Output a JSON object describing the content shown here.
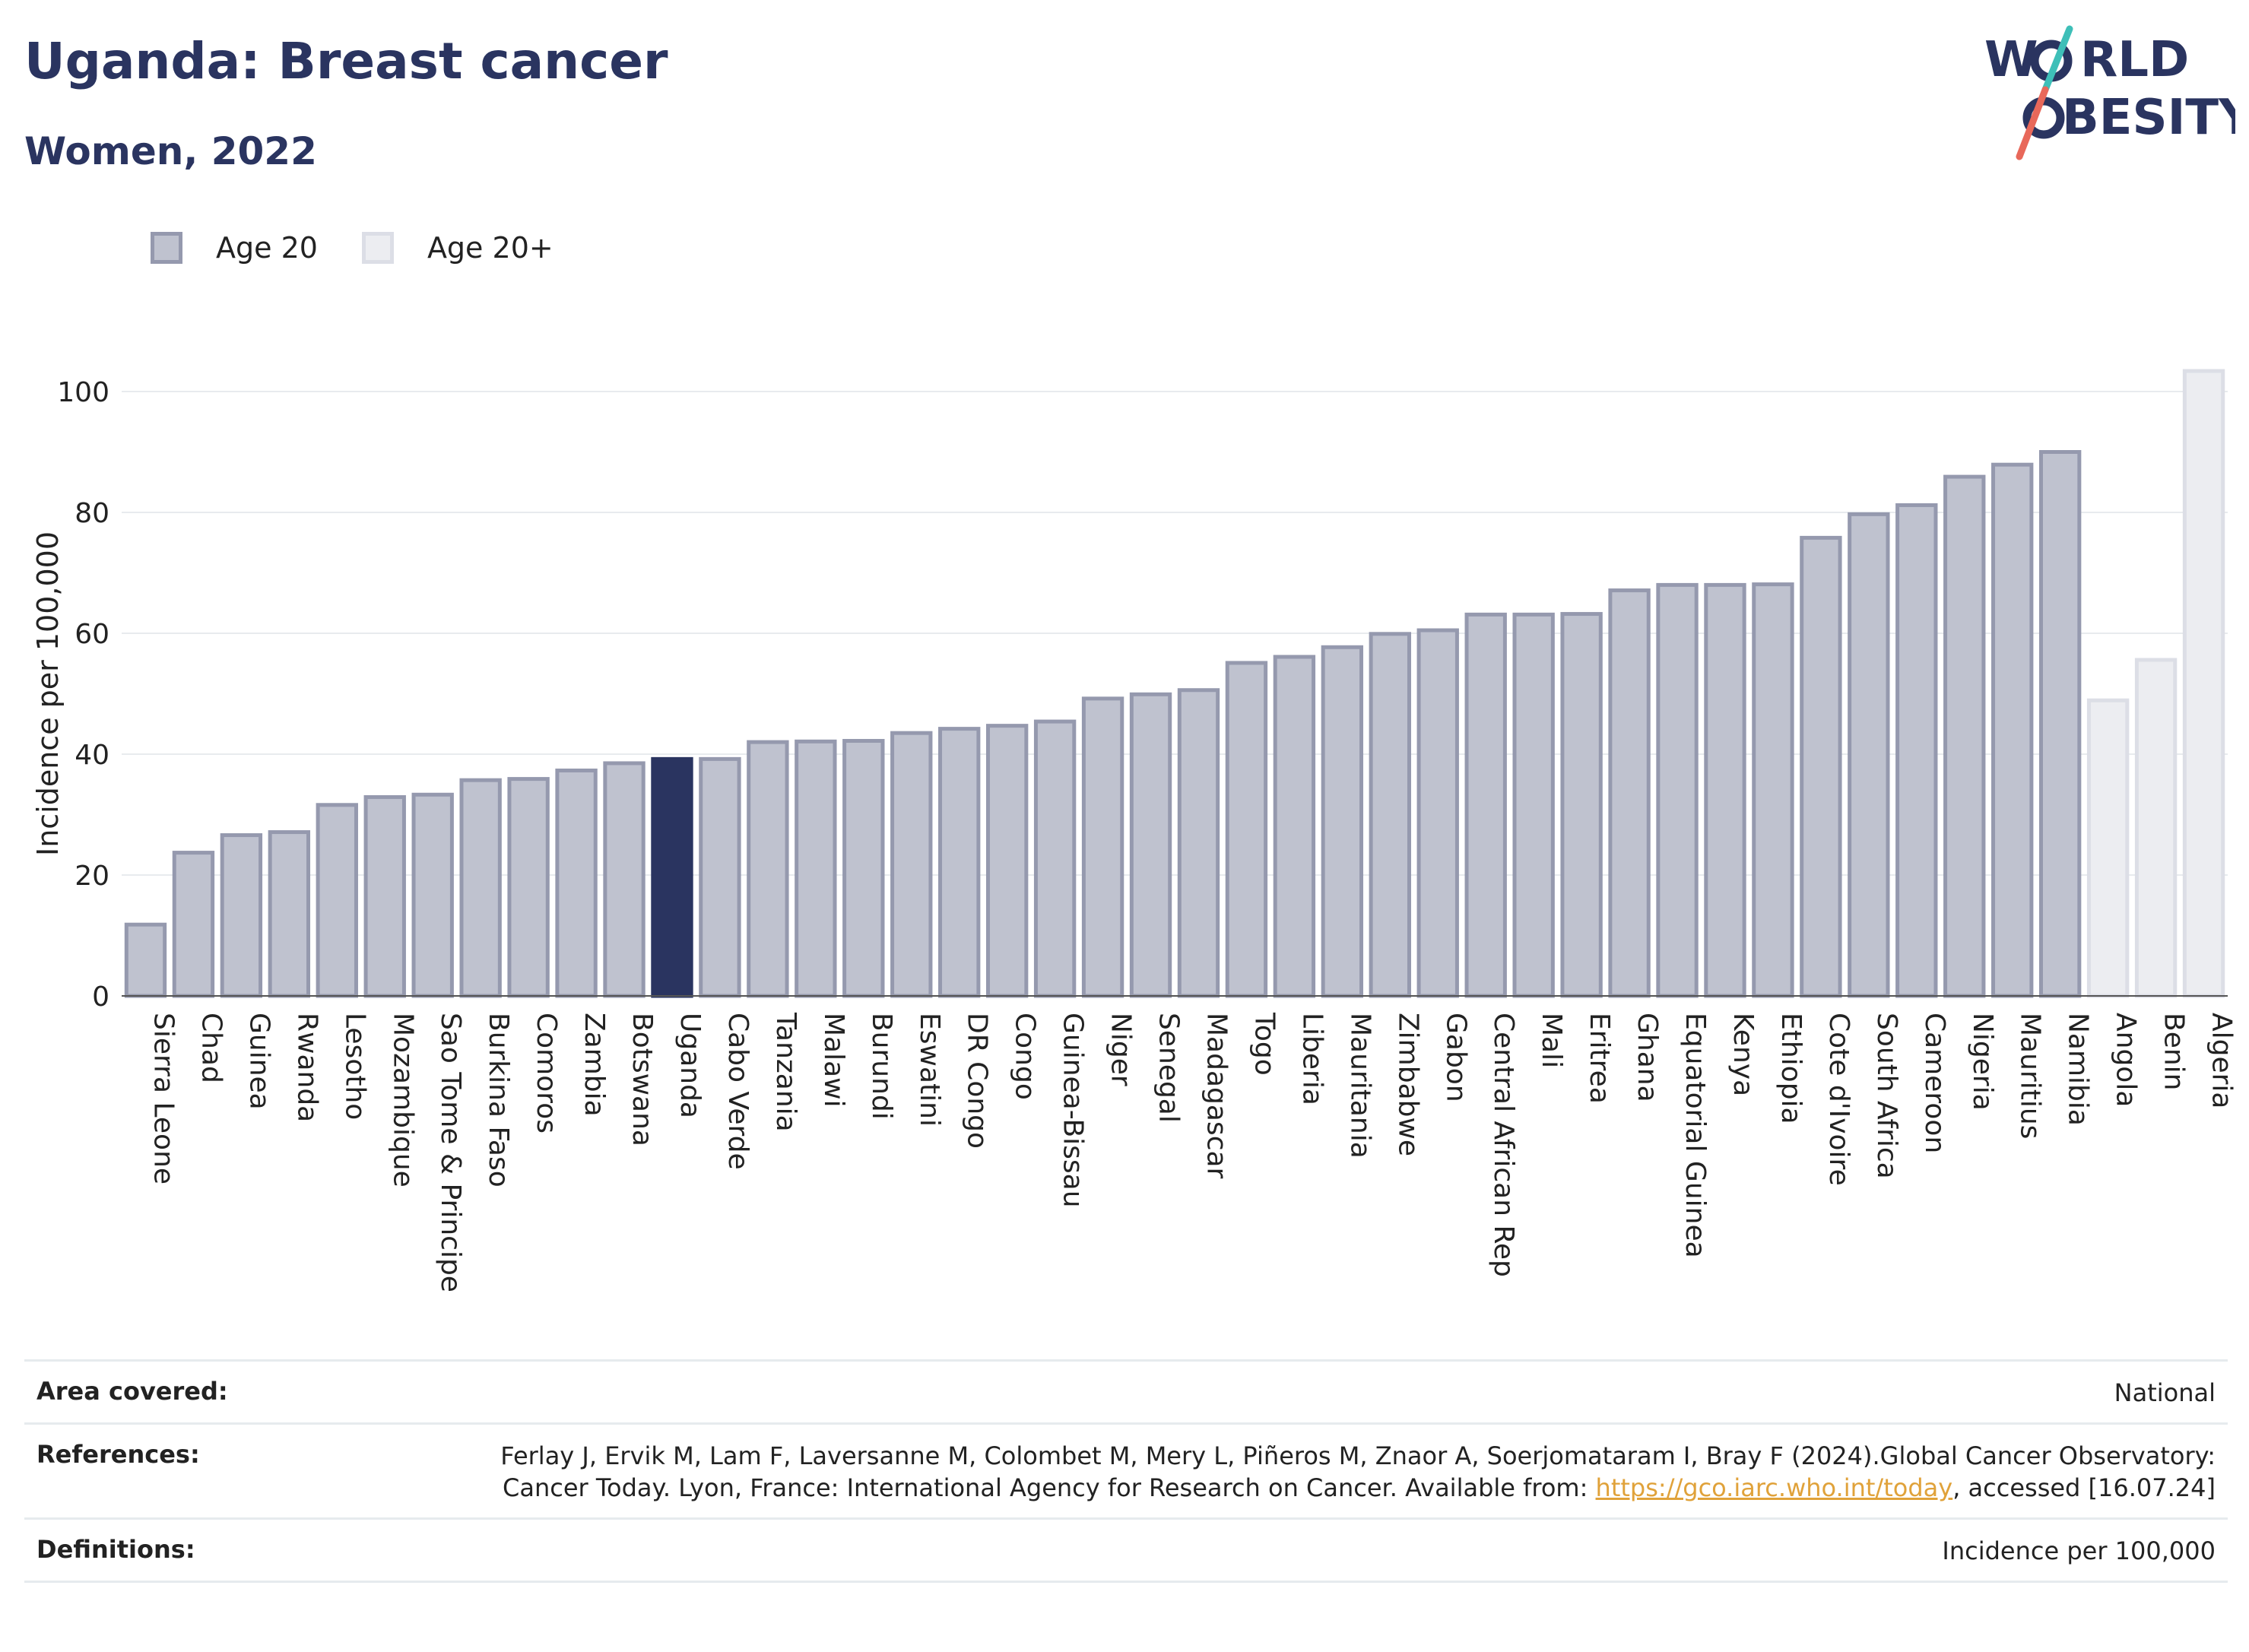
{
  "header": {
    "title": "Uganda: Breast cancer",
    "subtitle": "Women, 2022"
  },
  "logo": {
    "line1": "W",
    "line1_rest": "RLD",
    "line2": "BESITY",
    "slash_colors": [
      "#e8685a",
      "#3ebfb8"
    ]
  },
  "colors": {
    "navy": "#2a3460",
    "bar_age20_fill": "#bfc2cf",
    "bar_age20_stroke": "#9599ae",
    "bar_age20plus_fill": "#ecedf1",
    "bar_age20plus_stroke": "#dcdee6",
    "highlight": "#2a3460"
  },
  "chart_data": {
    "type": "bar",
    "ylabel": "Incidence per 100,000",
    "ylim": [
      0,
      105
    ],
    "yticks": [
      0,
      20,
      40,
      60,
      80,
      100
    ],
    "grid": true,
    "legend": [
      {
        "name": "Age 20",
        "key": "age20"
      },
      {
        "name": "Age 20+",
        "key": "age20plus"
      }
    ],
    "legend_position": "top-left",
    "highlight": "Uganda",
    "bars": [
      {
        "category": "Sierra Leone",
        "value": 11.8,
        "series": "age20"
      },
      {
        "category": "Chad",
        "value": 23.7,
        "series": "age20"
      },
      {
        "category": "Guinea",
        "value": 26.6,
        "series": "age20"
      },
      {
        "category": "Rwanda",
        "value": 27.1,
        "series": "age20"
      },
      {
        "category": "Lesotho",
        "value": 31.6,
        "series": "age20"
      },
      {
        "category": "Mozambique",
        "value": 32.9,
        "series": "age20"
      },
      {
        "category": "Sao Tome & Principe",
        "value": 33.3,
        "series": "age20"
      },
      {
        "category": "Burkina Faso",
        "value": 35.7,
        "series": "age20"
      },
      {
        "category": "Comoros",
        "value": 35.9,
        "series": "age20"
      },
      {
        "category": "Zambia",
        "value": 37.3,
        "series": "age20"
      },
      {
        "category": "Botswana",
        "value": 38.5,
        "series": "age20"
      },
      {
        "category": "Uganda",
        "value": 39.2,
        "series": "age20"
      },
      {
        "category": "Cabo Verde",
        "value": 39.2,
        "series": "age20"
      },
      {
        "category": "Tanzania",
        "value": 42.0,
        "series": "age20"
      },
      {
        "category": "Malawi",
        "value": 42.1,
        "series": "age20"
      },
      {
        "category": "Burundi",
        "value": 42.2,
        "series": "age20"
      },
      {
        "category": "Eswatini",
        "value": 43.5,
        "series": "age20"
      },
      {
        "category": "DR Congo",
        "value": 44.2,
        "series": "age20"
      },
      {
        "category": "Congo",
        "value": 44.7,
        "series": "age20"
      },
      {
        "category": "Guinea-Bissau",
        "value": 45.4,
        "series": "age20"
      },
      {
        "category": "Niger",
        "value": 49.2,
        "series": "age20"
      },
      {
        "category": "Senegal",
        "value": 49.9,
        "series": "age20"
      },
      {
        "category": "Madagascar",
        "value": 50.6,
        "series": "age20"
      },
      {
        "category": "Togo",
        "value": 55.1,
        "series": "age20"
      },
      {
        "category": "Liberia",
        "value": 56.1,
        "series": "age20"
      },
      {
        "category": "Mauritania",
        "value": 57.7,
        "series": "age20"
      },
      {
        "category": "Zimbabwe",
        "value": 59.9,
        "series": "age20"
      },
      {
        "category": "Gabon",
        "value": 60.5,
        "series": "age20"
      },
      {
        "category": "Central African Rep",
        "value": 63.1,
        "series": "age20"
      },
      {
        "category": "Mali",
        "value": 63.1,
        "series": "age20"
      },
      {
        "category": "Eritrea",
        "value": 63.2,
        "series": "age20"
      },
      {
        "category": "Ghana",
        "value": 67.1,
        "series": "age20"
      },
      {
        "category": "Equatorial Guinea",
        "value": 68.0,
        "series": "age20"
      },
      {
        "category": "Kenya",
        "value": 68.0,
        "series": "age20"
      },
      {
        "category": "Ethiopia",
        "value": 68.1,
        "series": "age20"
      },
      {
        "category": "Cote d'Ivoire",
        "value": 75.8,
        "series": "age20"
      },
      {
        "category": "South Africa",
        "value": 79.7,
        "series": "age20"
      },
      {
        "category": "Cameroon",
        "value": 81.2,
        "series": "age20"
      },
      {
        "category": "Nigeria",
        "value": 85.9,
        "series": "age20"
      },
      {
        "category": "Mauritius",
        "value": 87.9,
        "series": "age20"
      },
      {
        "category": "Namibia",
        "value": 90.0,
        "series": "age20"
      },
      {
        "category": "Angola",
        "value": 48.9,
        "series": "age20plus"
      },
      {
        "category": "Benin",
        "value": 55.6,
        "series": "age20plus"
      },
      {
        "category": "Algeria",
        "value": 103.4,
        "series": "age20plus"
      }
    ]
  },
  "info": {
    "area_label": "Area covered:",
    "area_value": "National",
    "references_label": "References:",
    "references_text": "Ferlay J, Ervik M, Lam F, Laversanne M, Colombet M, Mery L, Piñeros M, Znaor A, Soerjomataram I, Bray F (2024).Global Cancer Observatory: Cancer Today. Lyon, France: International Agency for Research on Cancer. Available from:",
    "references_link": "https://gco.iarc.who.int/today",
    "references_suffix": ", accessed [16.07.24]",
    "definitions_label": "Definitions:",
    "definitions_value": "Incidence per 100,000"
  }
}
